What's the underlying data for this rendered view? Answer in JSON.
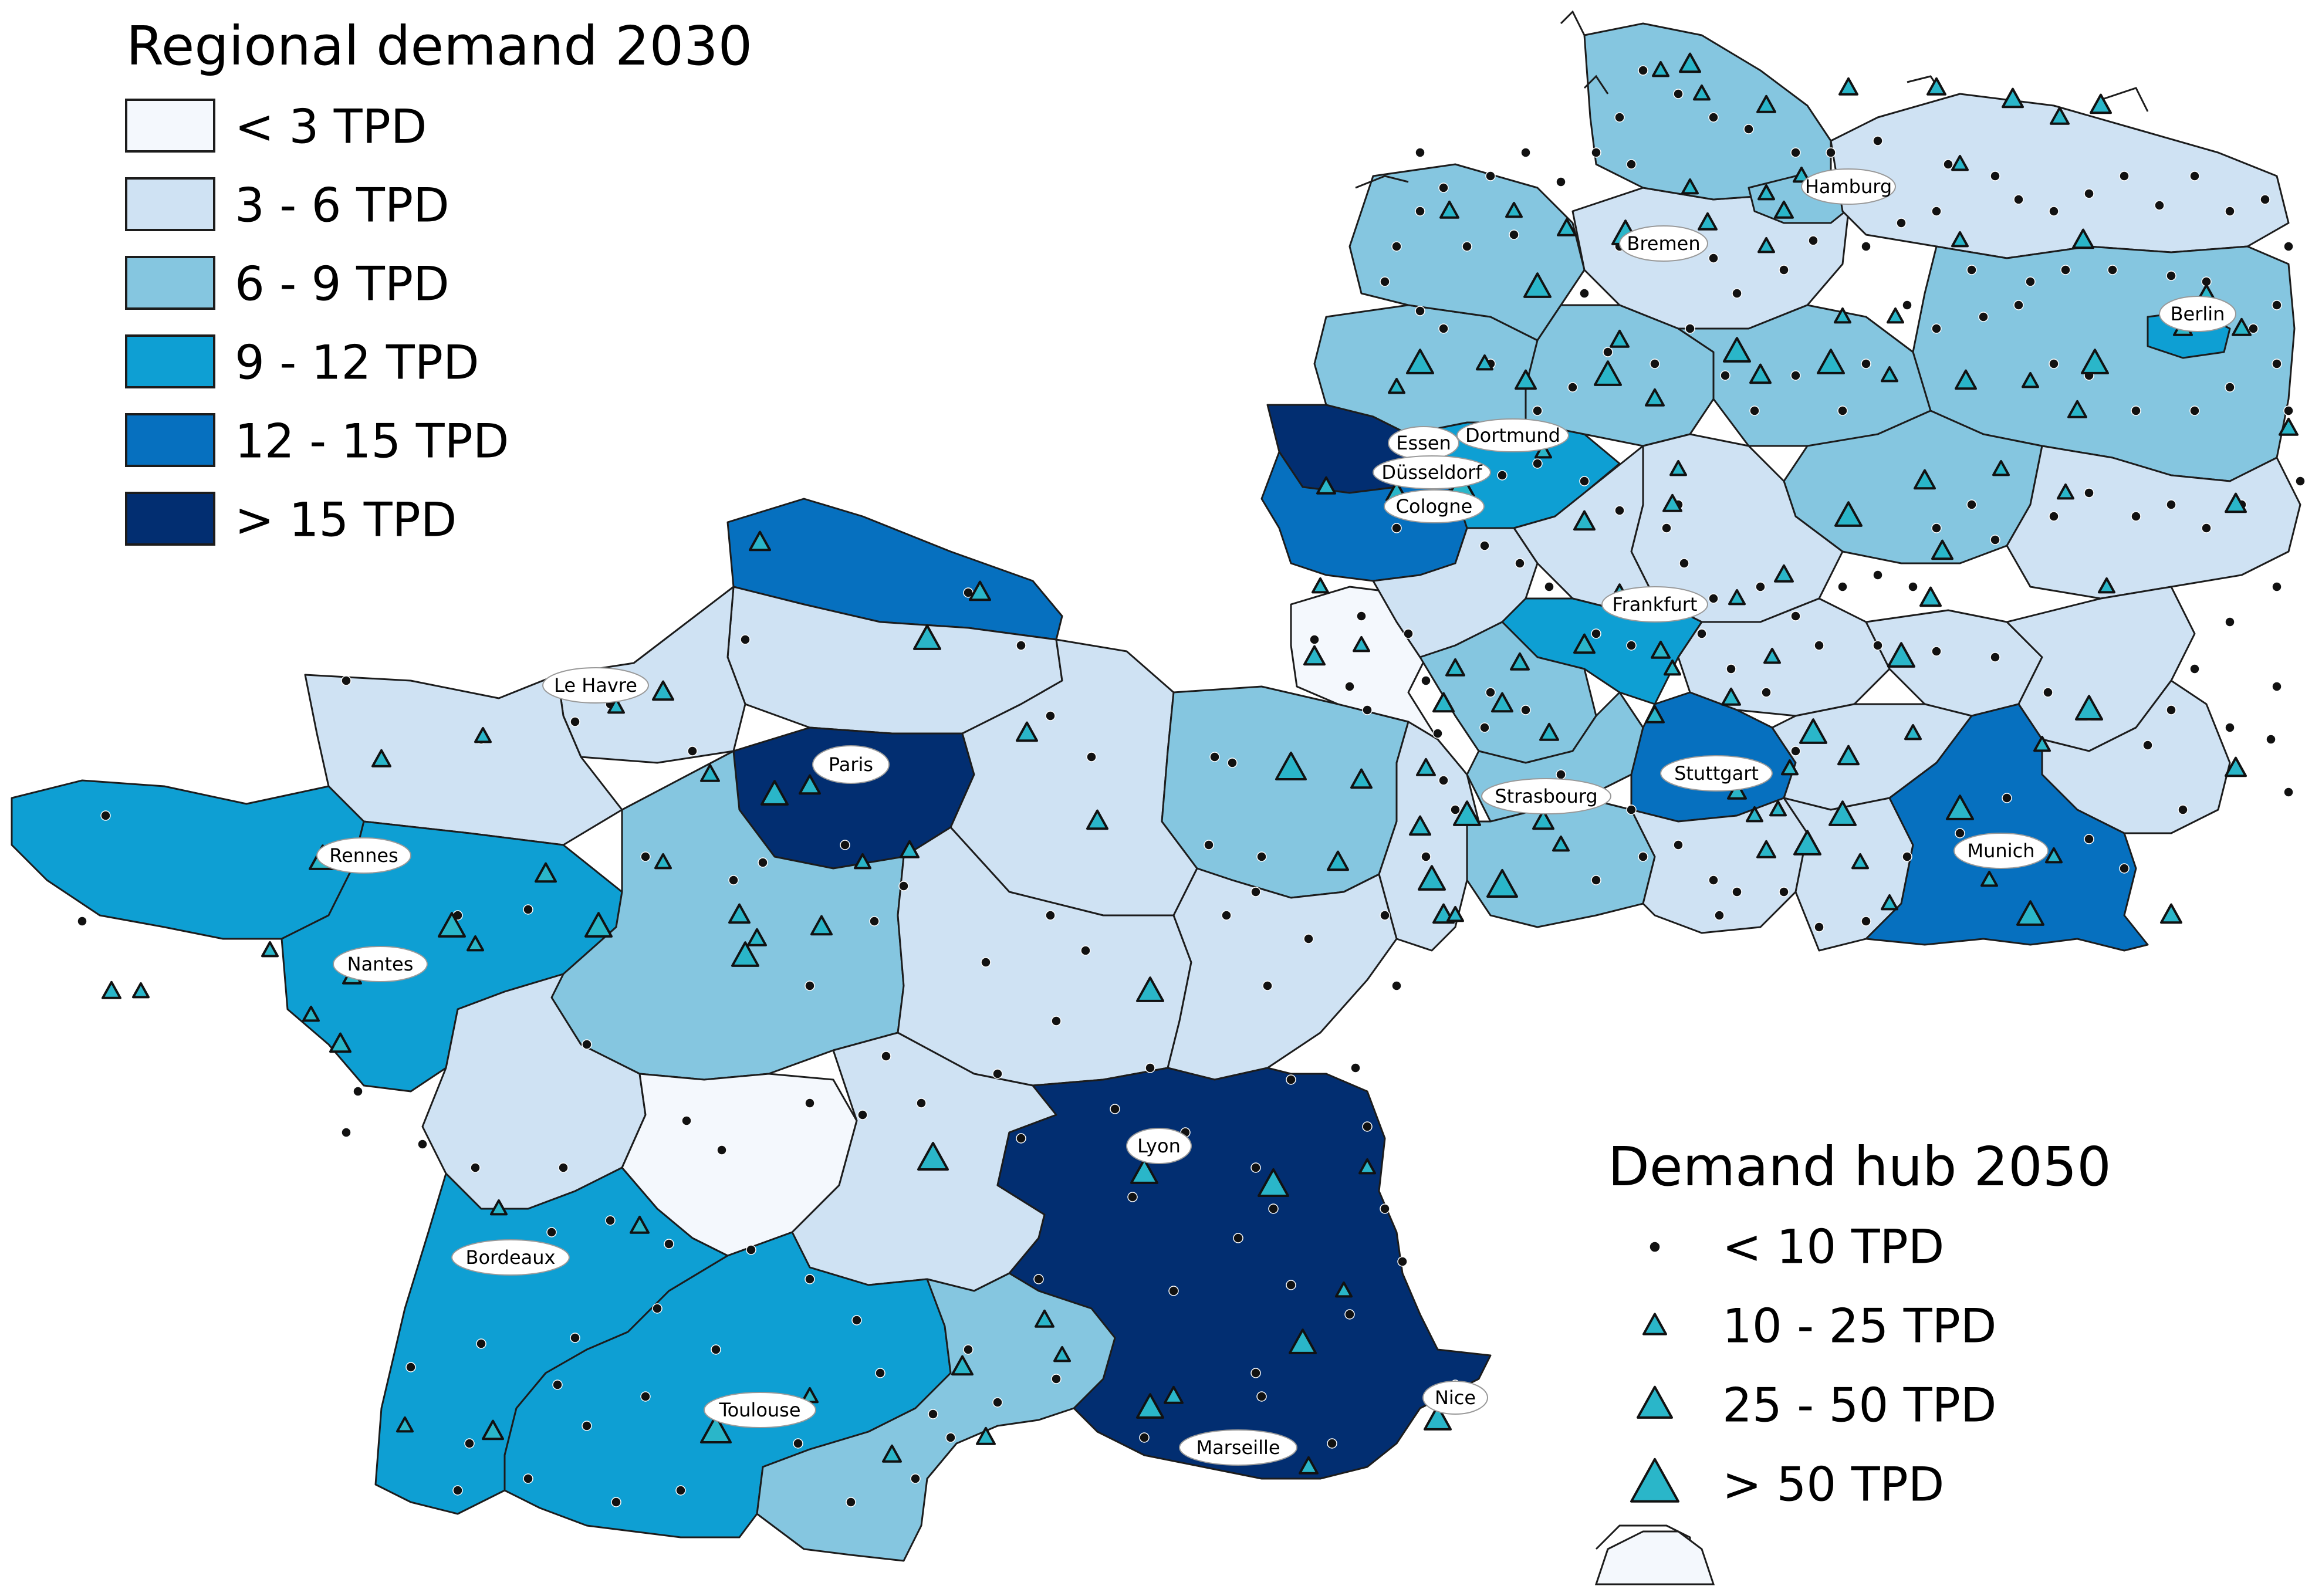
{
  "map": {
    "regional_legend": {
      "title": "Regional demand 2030",
      "classes": [
        {
          "label": "< 3 TPD",
          "color": "#f4f8fd"
        },
        {
          "label": "3 - 6 TPD",
          "color": "#cfe2f3"
        },
        {
          "label": "6 - 9 TPD",
          "color": "#85c6e0"
        },
        {
          "label": "9 - 12 TPD",
          "color": "#0e9fd3"
        },
        {
          "label": "12 - 15 TPD",
          "color": "#0670bf"
        },
        {
          "label": "> 15 TPD",
          "color": "#022e71"
        }
      ]
    },
    "hub_legend": {
      "title": "Demand hub 2050",
      "classes": [
        {
          "label": "< 10 TPD",
          "symbol": "dot"
        },
        {
          "label": "10 - 25 TPD",
          "symbol": "small-triangle"
        },
        {
          "label": "25 - 50 TPD",
          "symbol": "medium-triangle"
        },
        {
          "label": "> 50 TPD",
          "symbol": "large-triangle"
        }
      ]
    },
    "cities": [
      {
        "name": "Hamburg"
      },
      {
        "name": "Bremen"
      },
      {
        "name": "Berlin"
      },
      {
        "name": "Essen"
      },
      {
        "name": "Dortmund"
      },
      {
        "name": "Düsseldorf"
      },
      {
        "name": "Cologne"
      },
      {
        "name": "Frankfurt"
      },
      {
        "name": "Stuttgart"
      },
      {
        "name": "Munich"
      },
      {
        "name": "Strasbourg"
      },
      {
        "name": "Le Havre"
      },
      {
        "name": "Paris"
      },
      {
        "name": "Rennes"
      },
      {
        "name": "Nantes"
      },
      {
        "name": "Lyon"
      },
      {
        "name": "Bordeaux"
      },
      {
        "name": "Toulouse"
      },
      {
        "name": "Marseille"
      },
      {
        "name": "Nice"
      }
    ]
  }
}
